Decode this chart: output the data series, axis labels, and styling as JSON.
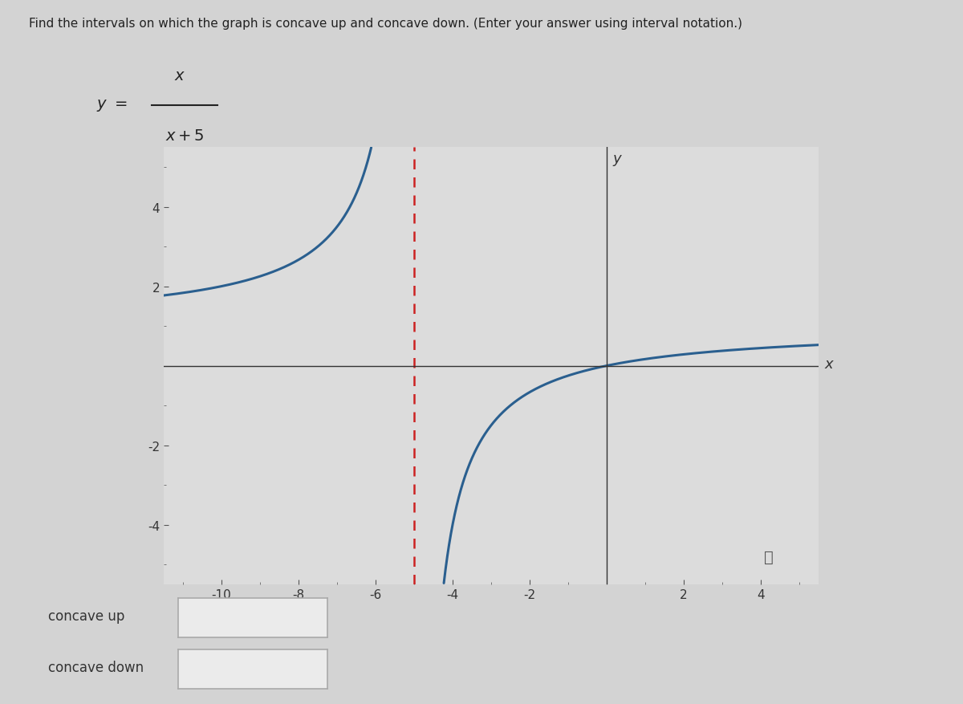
{
  "title": "Find the intervals on which the graph is concave up and concave down. (Enter your answer using interval notation.)",
  "asymptote_x": -5,
  "xlim": [
    -11.5,
    5.5
  ],
  "ylim": [
    -5.5,
    5.5
  ],
  "xticks": [
    -10,
    -8,
    -6,
    -4,
    -2,
    2,
    4
  ],
  "yticks": [
    -4,
    -2,
    2,
    4
  ],
  "curve_color": "#2a5f8f",
  "asymptote_color": "#cc2222",
  "bg_color": "#d3d3d3",
  "panel_color": "#dcdcdc",
  "axis_color": "#333333",
  "concave_up_label": "concave up",
  "concave_down_label": "concave down",
  "xlabel": "x",
  "ylabel": "y",
  "curve_lw": 2.2,
  "asymptote_lw": 1.8
}
